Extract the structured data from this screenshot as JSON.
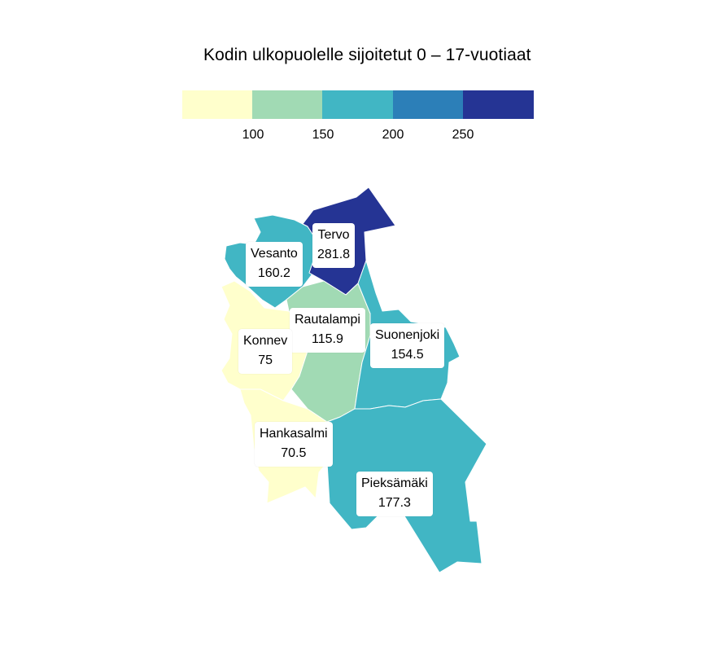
{
  "title": "Kodin ulkopuolelle sijoitetut 0 – 17-vuotiaat",
  "legend": {
    "colors": [
      "#ffffcc",
      "#a1dab4",
      "#41b6c4",
      "#2c7fb8",
      "#253494"
    ],
    "thresholds": [
      "100",
      "150",
      "200",
      "250"
    ]
  },
  "chart_data": {
    "type": "choropleth",
    "title": "Kodin ulkopuolelle sijoitetut 0 – 17-vuotiaat",
    "bins": [
      100,
      150,
      200,
      250
    ],
    "regions": [
      {
        "name": "Tervo",
        "value": "281.8",
        "color": "#253494"
      },
      {
        "name": "Vesanto",
        "value": "160.2",
        "color": "#41b6c4"
      },
      {
        "name": "Rautalampi",
        "value": "115.9",
        "color": "#a1dab4"
      },
      {
        "name": "Suonenjoki",
        "value": "154.5",
        "color": "#41b6c4"
      },
      {
        "name": "Konnev",
        "value": "75",
        "color": "#ffffcc"
      },
      {
        "name": "Hankasalmi",
        "value": "70.5",
        "color": "#ffffcc"
      },
      {
        "name": "Pieksämäki",
        "value": "177.3",
        "color": "#41b6c4"
      }
    ]
  }
}
